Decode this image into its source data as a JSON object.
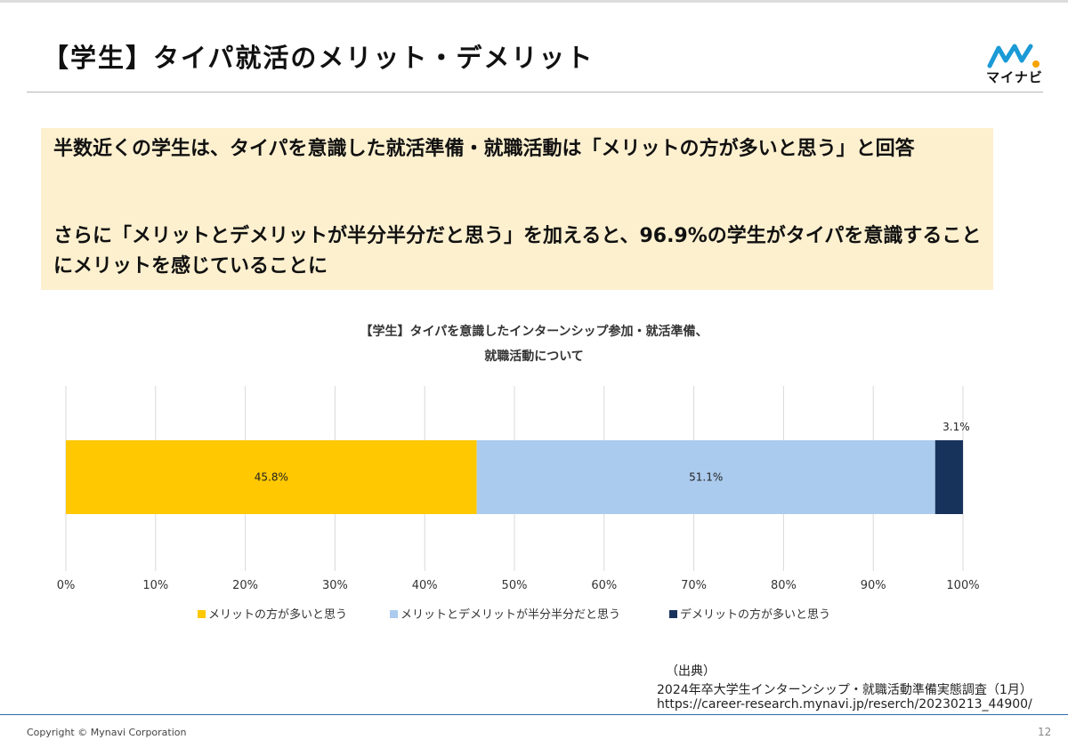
{
  "slide": {
    "title": "【学生】タイパ就活のメリット・デメリット",
    "logo_text": "マイナビ",
    "summary_1": "半数近くの学生は、タイパを意識した就活準備・就職活動は「メリットの方が多いと思う」と回答",
    "summary_2": "さらに「メリットとデメリットが半分半分だと思う」を加えると、96.9%の学生がタイパを意識することにメリットを感じていることに",
    "source_label": "（出典）",
    "source_name": "2024年卒大学生インターンシップ・就職活動準備実態調査（1月）",
    "source_url": "https://career-research.mynavi.jp/reserch/20230213_44900/",
    "copyright": "Copyright © Mynavi Corporation",
    "page_number": "12"
  },
  "chart_data": {
    "type": "bar",
    "orientation": "horizontal-stacked",
    "title_line1": "【学生】タイパを意識したインターンシップ参加・就活準備、",
    "title_line2": "就職活動について",
    "series": [
      {
        "name": "メリットの方が多いと思う",
        "value": 45.8,
        "label": "45.8%",
        "color": "#ffc800"
      },
      {
        "name": "メリットとデメリットが半分半分だと思う",
        "value": 51.1,
        "label": "51.1%",
        "color": "#abcbee"
      },
      {
        "name": "デメリットの方が多いと思う",
        "value": 3.1,
        "label": "3.1%",
        "color": "#17335c"
      }
    ],
    "x_ticks": [
      "0%",
      "10%",
      "20%",
      "30%",
      "40%",
      "50%",
      "60%",
      "70%",
      "80%",
      "90%",
      "100%"
    ],
    "xlim": [
      0,
      100
    ],
    "grid": true,
    "legend_position": "bottom"
  }
}
